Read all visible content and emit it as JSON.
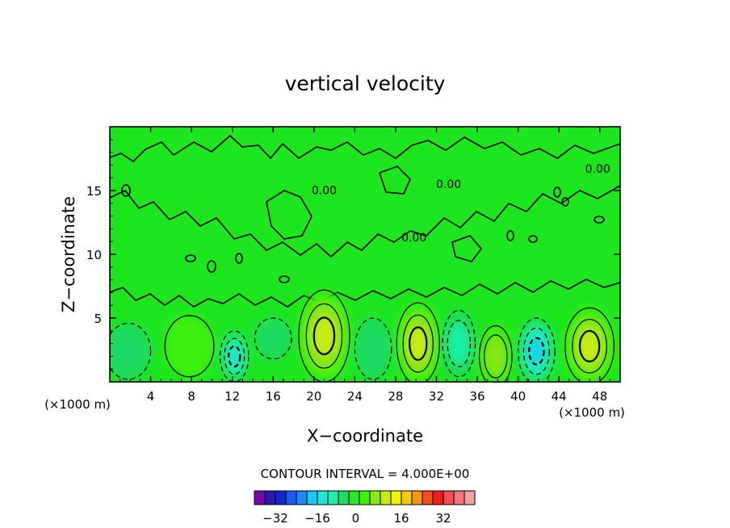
{
  "chart_data": {
    "type": "contour",
    "title": "vertical velocity",
    "xlabel": "X−coordinate",
    "ylabel": "Z−coordinate",
    "x_unit_left": "(×1000 m)",
    "x_unit_right": "(×1000 m)",
    "xlim": [
      0,
      50
    ],
    "ylim": [
      0,
      20
    ],
    "x_ticks": [
      4,
      8,
      12,
      16,
      20,
      24,
      28,
      32,
      36,
      40,
      44,
      48
    ],
    "y_ticks": [
      5,
      10,
      15
    ],
    "contour_interval_text": "CONTOUR INTERVAL = 4.000E+00",
    "contour_labels": [
      {
        "text": "0.00",
        "x": 21.0,
        "z": 14.7
      },
      {
        "text": "0.00",
        "x": 33.2,
        "z": 15.2
      },
      {
        "text": "0.00",
        "x": 29.8,
        "z": 11.0
      },
      {
        "text": "0.00",
        "x": 47.8,
        "z": 16.4
      }
    ],
    "cells": [
      {
        "x": 1.8,
        "z": 2.4,
        "rx": 2.2,
        "rz": 2.2,
        "value": -6
      },
      {
        "x": 7.8,
        "z": 2.8,
        "rx": 2.4,
        "rz": 2.4,
        "value": 6
      },
      {
        "x": 12.2,
        "z": 2.0,
        "rx": 1.4,
        "rz": 2.0,
        "value": -14
      },
      {
        "x": 16.0,
        "z": 3.4,
        "rx": 1.8,
        "rz": 1.6,
        "value": -5
      },
      {
        "x": 21.0,
        "z": 3.6,
        "rx": 2.5,
        "rz": 3.6,
        "value": 14
      },
      {
        "x": 25.8,
        "z": 2.6,
        "rx": 1.8,
        "rz": 2.4,
        "value": -6
      },
      {
        "x": 30.2,
        "z": 3.0,
        "rx": 2.1,
        "rz": 3.2,
        "value": 12
      },
      {
        "x": 34.2,
        "z": 3.0,
        "rx": 1.6,
        "rz": 2.6,
        "value": -10
      },
      {
        "x": 37.8,
        "z": 2.0,
        "rx": 1.6,
        "rz": 2.4,
        "value": 10
      },
      {
        "x": 41.8,
        "z": 2.4,
        "rx": 1.8,
        "rz": 2.6,
        "value": -18
      },
      {
        "x": 47.0,
        "z": 2.8,
        "rx": 2.4,
        "rz": 3.0,
        "value": 14
      }
    ],
    "colorbar": {
      "colors": [
        "#7a0aa8",
        "#2a1ab2",
        "#1428d2",
        "#1e5af0",
        "#1e8cf5",
        "#14c8f0",
        "#1ee6d2",
        "#1ef0aa",
        "#1edc64",
        "#28e628",
        "#3cf00a",
        "#8ce614",
        "#c8eb14",
        "#f0f000",
        "#f5c814",
        "#f59614",
        "#f0501e",
        "#f01e1e",
        "#f05050",
        "#f07878",
        "#f0a0a0"
      ],
      "tick_labels": [
        "−32",
        "−16",
        "0",
        "16",
        "32"
      ]
    }
  }
}
